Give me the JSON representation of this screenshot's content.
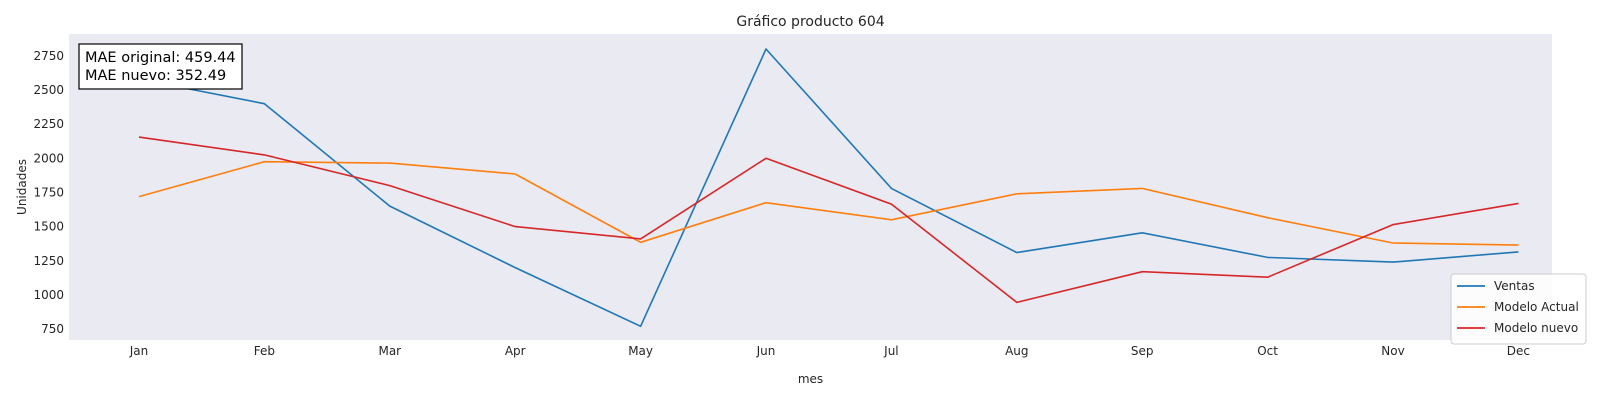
{
  "chart_data": {
    "type": "line",
    "title": "Gráfico producto 604",
    "xlabel": "mes",
    "ylabel": "Unidades",
    "categories": [
      "Jan",
      "Feb",
      "Mar",
      "Apr",
      "May",
      "Jun",
      "Jul",
      "Aug",
      "Sep",
      "Oct",
      "Nov",
      "Dec"
    ],
    "yticks": [
      750,
      1000,
      1250,
      1500,
      1750,
      2000,
      2250,
      2500,
      2750
    ],
    "ylim": [
      670,
      2910
    ],
    "grid": false,
    "legend_position": "lower-right",
    "background": "#eaeaf2",
    "series": [
      {
        "name": "Ventas",
        "color": "#1f77b4",
        "values": [
          2580,
          2400,
          1650,
          1200,
          770,
          2800,
          1780,
          1310,
          1455,
          1275,
          1240,
          1315
        ]
      },
      {
        "name": "Modelo Actual",
        "color": "#ff7f0e",
        "values": [
          1720,
          1975,
          1965,
          1885,
          1385,
          1675,
          1550,
          1740,
          1780,
          1565,
          1380,
          1365
        ]
      },
      {
        "name": "Modelo nuevo",
        "color": "#d62728",
        "values": [
          2155,
          2025,
          1800,
          1500,
          1410,
          2000,
          1665,
          945,
          1170,
          1130,
          1515,
          1670
        ]
      }
    ],
    "annotation": [
      "MAE original: 459.44",
      "MAE nuevo: 352.49"
    ]
  }
}
